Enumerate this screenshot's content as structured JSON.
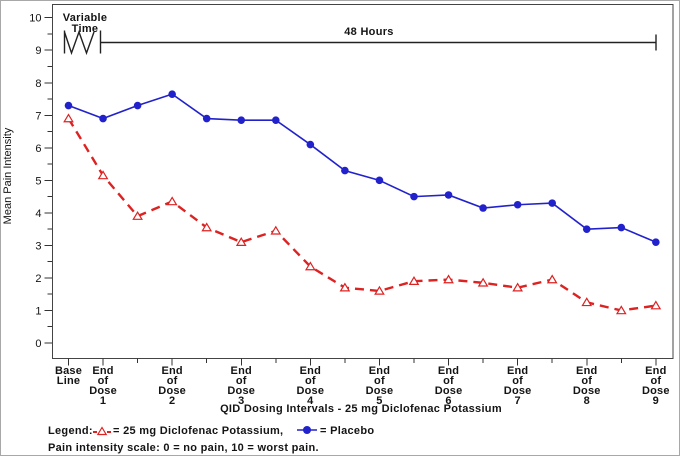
{
  "chart_data": {
    "type": "line",
    "title": "",
    "ylabel": "Mean Pain Intensity",
    "xlabel": "QID Dosing Intervals - 25 mg Diclofenac Potassium",
    "ylim": [
      0,
      10
    ],
    "y_ticks": [
      0,
      1,
      2,
      3,
      4,
      5,
      6,
      7,
      8,
      9,
      10
    ],
    "y_minor_tick_step": 0.5,
    "grid": false,
    "legend_position": "bottom-left",
    "annotations": {
      "variable_time_line1": "Variable",
      "variable_time_line2": "Time",
      "duration": "48 Hours"
    },
    "categories": [
      {
        "label": "Base Line",
        "lines": [
          "Base",
          "Line"
        ]
      },
      {
        "label": "End of Dose 1",
        "lines": [
          "End",
          "of",
          "Dose",
          "1"
        ]
      },
      {
        "label": "",
        "lines": []
      },
      {
        "label": "End of Dose 2",
        "lines": [
          "End",
          "of",
          "Dose",
          "2"
        ]
      },
      {
        "label": "",
        "lines": []
      },
      {
        "label": "End of Dose 3",
        "lines": [
          "End",
          "of",
          "Dose",
          "3"
        ]
      },
      {
        "label": "",
        "lines": []
      },
      {
        "label": "End of Dose 4",
        "lines": [
          "End",
          "of",
          "Dose",
          "4"
        ]
      },
      {
        "label": "",
        "lines": []
      },
      {
        "label": "End of Dose 5",
        "lines": [
          "End",
          "of",
          "Dose",
          "5"
        ]
      },
      {
        "label": "",
        "lines": []
      },
      {
        "label": "End of Dose 6",
        "lines": [
          "End",
          "of",
          "Dose",
          "6"
        ]
      },
      {
        "label": "",
        "lines": []
      },
      {
        "label": "End of Dose 7",
        "lines": [
          "End",
          "of",
          "Dose",
          "7"
        ]
      },
      {
        "label": "",
        "lines": []
      },
      {
        "label": "End of Dose 8",
        "lines": [
          "End",
          "of",
          "Dose",
          "8"
        ]
      },
      {
        "label": "",
        "lines": []
      },
      {
        "label": "End of Dose 9",
        "lines": [
          "End",
          "of",
          "Dose",
          "9"
        ]
      }
    ],
    "series": [
      {
        "name": "25 mg Diclofenac Potassium",
        "color": "#dd2222",
        "line_style": "dashed",
        "marker": "open-triangle",
        "values": [
          6.9,
          5.15,
          3.9,
          4.35,
          3.55,
          3.1,
          3.45,
          2.35,
          1.7,
          1.6,
          1.9,
          1.95,
          1.85,
          1.7,
          1.95,
          1.25,
          1.0,
          1.15
        ]
      },
      {
        "name": "Placebo",
        "color": "#2222cc",
        "line_style": "solid",
        "marker": "filled-circle",
        "values": [
          7.3,
          6.9,
          7.3,
          7.65,
          6.9,
          6.85,
          6.85,
          6.1,
          5.3,
          5.0,
          4.5,
          4.55,
          4.15,
          4.25,
          4.3,
          3.5,
          3.55,
          3.1
        ]
      }
    ]
  },
  "legend": {
    "prefix": "Legend:",
    "diclofenac_label": "= 25 mg Diclofenac Potassium,",
    "placebo_label": "= Placebo"
  },
  "footer": {
    "note": "Pain intensity scale: 0 = no pain, 10 = worst pain."
  }
}
